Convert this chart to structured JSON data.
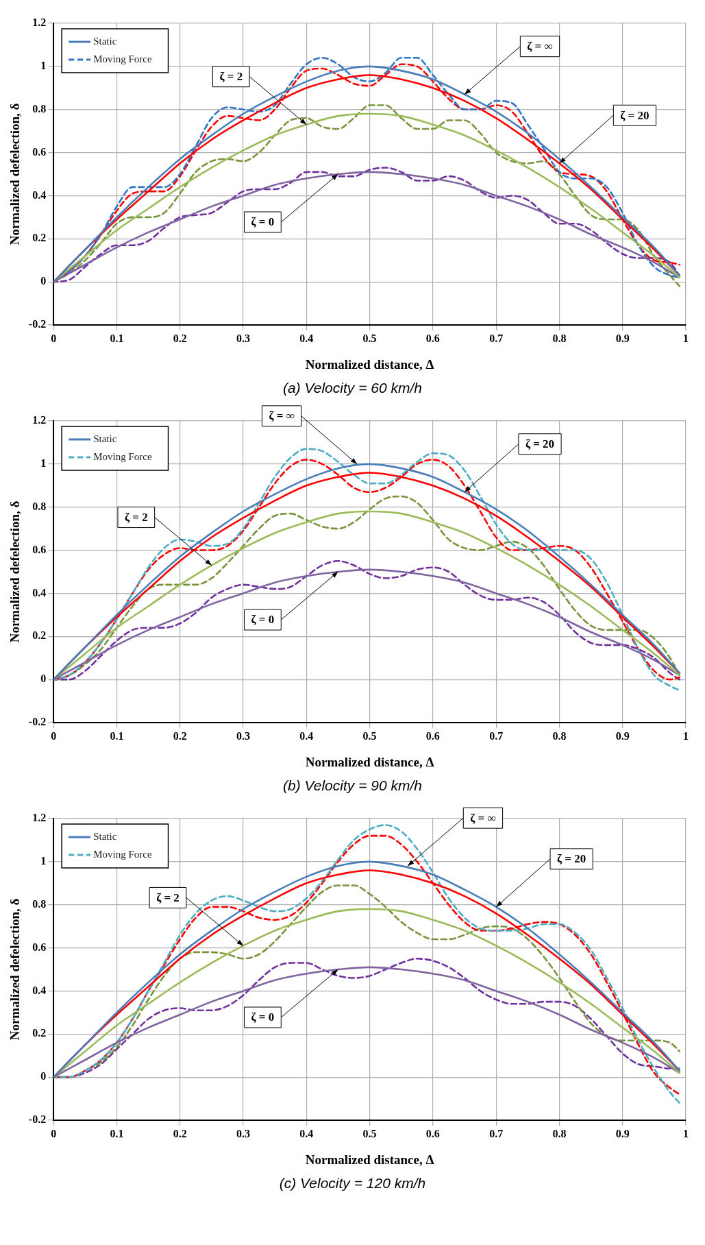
{
  "chart_data": [
    {
      "type": "line",
      "title": "(a) Velocity = 60 km/h",
      "xlabel": "Normalized distance, Δ",
      "ylabel": "Normalized defelection, δ",
      "xlim": [
        0,
        1
      ],
      "ylim": [
        -0.2,
        1.2
      ],
      "xticks": [
        0,
        0.1,
        0.2,
        0.3,
        0.4,
        0.5,
        0.6,
        0.7,
        0.8,
        0.9,
        1
      ],
      "yticks": [
        -0.2,
        0,
        0.2,
        0.4,
        0.6,
        0.8,
        1,
        1.2
      ],
      "grid": true,
      "legend": "top left",
      "marker": "none",
      "annotations": [
        {
          "text": "ζ = ∞",
          "x": 0.65,
          "y": 0.87
        },
        {
          "text": "ζ = 20",
          "x": 0.8,
          "y": 0.55
        },
        {
          "text": "ζ = 2",
          "x": 0.4,
          "y": 0.73
        },
        {
          "text": "ζ = 0",
          "x": 0.45,
          "y": 0.5
        }
      ],
      "series": [
        {
          "name": "Static",
          "color": "#4a7ebb",
          "line_style": "solid",
          "x": [
            0,
            0.05,
            0.1,
            0.15,
            0.2,
            0.25,
            0.3,
            0.35,
            0.4,
            0.45,
            0.5,
            0.55,
            0.6,
            0.65,
            0.7,
            0.75,
            0.8,
            0.85,
            0.9,
            0.95,
            0.99
          ],
          "values": [
            0,
            0.15,
            0.3,
            0.44,
            0.57,
            0.68,
            0.78,
            0.86,
            0.93,
            0.98,
            1.0,
            0.98,
            0.94,
            0.87,
            0.79,
            0.69,
            0.57,
            0.44,
            0.3,
            0.16,
            0.03
          ]
        },
        {
          "color": "#ff0000",
          "line_style": "solid",
          "x": [
            0,
            0.05,
            0.1,
            0.15,
            0.2,
            0.25,
            0.3,
            0.35,
            0.4,
            0.45,
            0.5,
            0.55,
            0.6,
            0.65,
            0.7,
            0.75,
            0.8,
            0.85,
            0.9,
            0.95,
            0.99
          ],
          "values": [
            0,
            0.15,
            0.29,
            0.42,
            0.55,
            0.66,
            0.75,
            0.83,
            0.9,
            0.94,
            0.96,
            0.94,
            0.9,
            0.84,
            0.76,
            0.66,
            0.55,
            0.43,
            0.29,
            0.15,
            0.03
          ]
        },
        {
          "color": "#9bbb59",
          "line_style": "solid",
          "x": [
            0,
            0.05,
            0.1,
            0.15,
            0.2,
            0.25,
            0.3,
            0.35,
            0.4,
            0.45,
            0.5,
            0.55,
            0.6,
            0.65,
            0.7,
            0.75,
            0.8,
            0.85,
            0.9,
            0.95,
            0.99
          ],
          "values": [
            0,
            0.12,
            0.24,
            0.34,
            0.44,
            0.53,
            0.61,
            0.68,
            0.73,
            0.77,
            0.78,
            0.77,
            0.73,
            0.68,
            0.61,
            0.53,
            0.44,
            0.34,
            0.23,
            0.12,
            0.02
          ]
        },
        {
          "color": "#8064a2",
          "line_style": "solid",
          "x": [
            0,
            0.05,
            0.1,
            0.15,
            0.2,
            0.25,
            0.3,
            0.35,
            0.4,
            0.45,
            0.5,
            0.55,
            0.6,
            0.65,
            0.7,
            0.75,
            0.8,
            0.85,
            0.9,
            0.95,
            0.99
          ],
          "values": [
            0,
            0.08,
            0.16,
            0.23,
            0.29,
            0.35,
            0.4,
            0.45,
            0.48,
            0.5,
            0.51,
            0.5,
            0.48,
            0.45,
            0.4,
            0.35,
            0.29,
            0.22,
            0.16,
            0.09,
            0.02
          ]
        },
        {
          "name": "Moving Force",
          "color": "#2e75c8",
          "line_style": "dashed",
          "x": [
            0,
            0.025,
            0.05,
            0.075,
            0.1,
            0.125,
            0.15,
            0.175,
            0.2,
            0.225,
            0.25,
            0.275,
            0.3,
            0.325,
            0.35,
            0.375,
            0.4,
            0.425,
            0.45,
            0.475,
            0.5,
            0.525,
            0.55,
            0.575,
            0.6,
            0.625,
            0.65,
            0.675,
            0.7,
            0.725,
            0.75,
            0.775,
            0.8,
            0.825,
            0.85,
            0.875,
            0.9,
            0.925,
            0.95,
            0.975,
            0.99
          ],
          "values": [
            0,
            0.05,
            0.12,
            0.22,
            0.35,
            0.44,
            0.44,
            0.44,
            0.5,
            0.63,
            0.76,
            0.81,
            0.8,
            0.79,
            0.82,
            0.92,
            1.01,
            1.04,
            1.01,
            0.95,
            0.93,
            0.97,
            1.04,
            1.04,
            0.96,
            0.87,
            0.8,
            0.8,
            0.84,
            0.83,
            0.73,
            0.62,
            0.51,
            0.48,
            0.48,
            0.44,
            0.32,
            0.17,
            0.07,
            0.03,
            0.02
          ]
        },
        {
          "color": "#ff0000",
          "line_style": "dashed",
          "x": [
            0,
            0.025,
            0.05,
            0.075,
            0.1,
            0.125,
            0.15,
            0.175,
            0.2,
            0.225,
            0.25,
            0.275,
            0.3,
            0.325,
            0.35,
            0.375,
            0.4,
            0.425,
            0.45,
            0.475,
            0.5,
            0.525,
            0.55,
            0.575,
            0.6,
            0.625,
            0.65,
            0.675,
            0.7,
            0.725,
            0.75,
            0.775,
            0.8,
            0.825,
            0.85,
            0.875,
            0.9,
            0.925,
            0.95,
            0.975,
            0.99
          ],
          "values": [
            0,
            0.05,
            0.12,
            0.22,
            0.33,
            0.41,
            0.42,
            0.42,
            0.49,
            0.61,
            0.72,
            0.77,
            0.76,
            0.75,
            0.8,
            0.9,
            0.98,
            0.99,
            0.96,
            0.92,
            0.91,
            0.96,
            1.01,
            1.0,
            0.93,
            0.85,
            0.8,
            0.8,
            0.82,
            0.79,
            0.69,
            0.58,
            0.51,
            0.5,
            0.49,
            0.42,
            0.29,
            0.17,
            0.1,
            0.09,
            0.08
          ]
        },
        {
          "color": "#77933c",
          "line_style": "dashed",
          "x": [
            0,
            0.025,
            0.05,
            0.075,
            0.1,
            0.125,
            0.15,
            0.175,
            0.2,
            0.225,
            0.25,
            0.275,
            0.3,
            0.325,
            0.35,
            0.375,
            0.4,
            0.425,
            0.45,
            0.475,
            0.5,
            0.525,
            0.55,
            0.575,
            0.6,
            0.625,
            0.65,
            0.675,
            0.7,
            0.725,
            0.75,
            0.775,
            0.8,
            0.825,
            0.85,
            0.875,
            0.9,
            0.925,
            0.95,
            0.975,
            0.99
          ],
          "values": [
            0,
            0.04,
            0.1,
            0.18,
            0.27,
            0.3,
            0.3,
            0.32,
            0.41,
            0.51,
            0.56,
            0.57,
            0.56,
            0.6,
            0.68,
            0.75,
            0.76,
            0.72,
            0.71,
            0.76,
            0.82,
            0.82,
            0.76,
            0.71,
            0.71,
            0.75,
            0.75,
            0.69,
            0.6,
            0.56,
            0.55,
            0.56,
            0.5,
            0.4,
            0.31,
            0.29,
            0.29,
            0.24,
            0.12,
            0.03,
            -0.02
          ]
        },
        {
          "color": "#7030a0",
          "line_style": "dashed",
          "x": [
            0,
            0.025,
            0.05,
            0.075,
            0.1,
            0.125,
            0.15,
            0.175,
            0.2,
            0.225,
            0.25,
            0.275,
            0.3,
            0.325,
            0.35,
            0.375,
            0.4,
            0.425,
            0.45,
            0.475,
            0.5,
            0.525,
            0.55,
            0.575,
            0.6,
            0.625,
            0.65,
            0.675,
            0.7,
            0.725,
            0.75,
            0.775,
            0.8,
            0.825,
            0.85,
            0.875,
            0.9,
            0.925,
            0.95,
            0.975,
            0.99
          ],
          "values": [
            0,
            0.01,
            0.07,
            0.13,
            0.17,
            0.17,
            0.19,
            0.25,
            0.3,
            0.31,
            0.32,
            0.37,
            0.42,
            0.43,
            0.43,
            0.46,
            0.51,
            0.51,
            0.49,
            0.49,
            0.52,
            0.53,
            0.51,
            0.47,
            0.47,
            0.49,
            0.47,
            0.42,
            0.39,
            0.4,
            0.38,
            0.32,
            0.27,
            0.27,
            0.24,
            0.18,
            0.13,
            0.11,
            0.11,
            0.09,
            0.03
          ]
        }
      ]
    },
    {
      "type": "line",
      "title": "(b) Velocity = 90 km/h",
      "xlabel": "Normalized distance, Δ",
      "ylabel": "Normalized defelection, δ",
      "xlim": [
        0,
        1
      ],
      "ylim": [
        -0.2,
        1.2
      ],
      "xticks": [
        0,
        0.1,
        0.2,
        0.3,
        0.4,
        0.5,
        0.6,
        0.7,
        0.8,
        0.9,
        1
      ],
      "yticks": [
        -0.2,
        0,
        0.2,
        0.4,
        0.6,
        0.8,
        1,
        1.2
      ],
      "grid": true,
      "legend": "top left",
      "marker": "none",
      "annotations": [
        {
          "text": "ζ = ∞",
          "x": 0.48,
          "y": 1.0
        },
        {
          "text": "ζ = 20",
          "x": 0.65,
          "y": 0.87
        },
        {
          "text": "ζ = 2",
          "x": 0.25,
          "y": 0.53
        },
        {
          "text": "ζ = 0",
          "x": 0.45,
          "y": 0.5
        }
      ],
      "series": [
        {
          "name": "Static",
          "color": "#4a7ebb",
          "line_style": "solid",
          "x": [
            0,
            0.05,
            0.1,
            0.15,
            0.2,
            0.25,
            0.3,
            0.35,
            0.4,
            0.45,
            0.5,
            0.55,
            0.6,
            0.65,
            0.7,
            0.75,
            0.8,
            0.85,
            0.9,
            0.95,
            0.99
          ],
          "values": [
            0,
            0.15,
            0.3,
            0.44,
            0.57,
            0.68,
            0.78,
            0.86,
            0.93,
            0.98,
            1.0,
            0.98,
            0.94,
            0.87,
            0.79,
            0.69,
            0.57,
            0.44,
            0.3,
            0.16,
            0.03
          ]
        },
        {
          "color": "#ff0000",
          "line_style": "solid",
          "x": [
            0,
            0.05,
            0.1,
            0.15,
            0.2,
            0.25,
            0.3,
            0.35,
            0.4,
            0.45,
            0.5,
            0.55,
            0.6,
            0.65,
            0.7,
            0.75,
            0.8,
            0.85,
            0.9,
            0.95,
            0.99
          ],
          "values": [
            0,
            0.15,
            0.29,
            0.42,
            0.55,
            0.66,
            0.75,
            0.83,
            0.9,
            0.94,
            0.96,
            0.94,
            0.9,
            0.84,
            0.76,
            0.66,
            0.55,
            0.43,
            0.29,
            0.15,
            0.03
          ]
        },
        {
          "color": "#9bbb59",
          "line_style": "solid",
          "x": [
            0,
            0.05,
            0.1,
            0.15,
            0.2,
            0.25,
            0.3,
            0.35,
            0.4,
            0.45,
            0.5,
            0.55,
            0.6,
            0.65,
            0.7,
            0.75,
            0.8,
            0.85,
            0.9,
            0.95,
            0.99
          ],
          "values": [
            0,
            0.12,
            0.24,
            0.34,
            0.44,
            0.53,
            0.61,
            0.68,
            0.73,
            0.77,
            0.78,
            0.77,
            0.73,
            0.68,
            0.61,
            0.53,
            0.44,
            0.34,
            0.23,
            0.12,
            0.02
          ]
        },
        {
          "color": "#8064a2",
          "line_style": "solid",
          "x": [
            0,
            0.05,
            0.1,
            0.15,
            0.2,
            0.25,
            0.3,
            0.35,
            0.4,
            0.45,
            0.5,
            0.55,
            0.6,
            0.65,
            0.7,
            0.75,
            0.8,
            0.85,
            0.9,
            0.95,
            0.99
          ],
          "values": [
            0,
            0.08,
            0.16,
            0.23,
            0.29,
            0.35,
            0.4,
            0.45,
            0.48,
            0.5,
            0.51,
            0.5,
            0.48,
            0.45,
            0.4,
            0.35,
            0.29,
            0.22,
            0.16,
            0.09,
            0.02
          ]
        },
        {
          "name": "Moving Force",
          "color": "#4bacc6",
          "line_style": "dashed",
          "x": [
            0,
            0.025,
            0.05,
            0.075,
            0.1,
            0.125,
            0.15,
            0.175,
            0.2,
            0.225,
            0.25,
            0.275,
            0.3,
            0.325,
            0.35,
            0.375,
            0.4,
            0.425,
            0.45,
            0.475,
            0.5,
            0.525,
            0.55,
            0.575,
            0.6,
            0.625,
            0.65,
            0.675,
            0.7,
            0.725,
            0.75,
            0.775,
            0.8,
            0.825,
            0.85,
            0.875,
            0.9,
            0.925,
            0.95,
            0.975,
            0.99
          ],
          "values": [
            0,
            0.02,
            0.08,
            0.17,
            0.28,
            0.4,
            0.52,
            0.61,
            0.65,
            0.64,
            0.62,
            0.63,
            0.7,
            0.82,
            0.94,
            1.03,
            1.07,
            1.06,
            1.01,
            0.95,
            0.91,
            0.91,
            0.95,
            1.01,
            1.05,
            1.04,
            0.97,
            0.85,
            0.72,
            0.63,
            0.6,
            0.6,
            0.6,
            0.6,
            0.56,
            0.45,
            0.3,
            0.14,
            0.02,
            -0.03,
            -0.05
          ]
        },
        {
          "color": "#ff0000",
          "line_style": "dashed",
          "x": [
            0,
            0.025,
            0.05,
            0.075,
            0.1,
            0.125,
            0.15,
            0.175,
            0.2,
            0.225,
            0.25,
            0.275,
            0.3,
            0.325,
            0.35,
            0.375,
            0.4,
            0.425,
            0.45,
            0.475,
            0.5,
            0.525,
            0.55,
            0.575,
            0.6,
            0.625,
            0.65,
            0.675,
            0.7,
            0.725,
            0.75,
            0.775,
            0.8,
            0.825,
            0.85,
            0.875,
            0.9,
            0.925,
            0.95,
            0.975,
            0.99
          ],
          "values": [
            0,
            0.02,
            0.08,
            0.17,
            0.28,
            0.4,
            0.51,
            0.58,
            0.61,
            0.6,
            0.6,
            0.62,
            0.69,
            0.8,
            0.91,
            0.99,
            1.02,
            1.0,
            0.95,
            0.89,
            0.87,
            0.89,
            0.94,
            1.0,
            1.02,
            0.99,
            0.9,
            0.78,
            0.66,
            0.6,
            0.6,
            0.61,
            0.62,
            0.6,
            0.52,
            0.4,
            0.27,
            0.14,
            0.04,
            0.0,
            0.01
          ]
        },
        {
          "color": "#77933c",
          "line_style": "dashed",
          "x": [
            0,
            0.025,
            0.05,
            0.075,
            0.1,
            0.125,
            0.15,
            0.175,
            0.2,
            0.225,
            0.25,
            0.275,
            0.3,
            0.325,
            0.35,
            0.375,
            0.4,
            0.425,
            0.45,
            0.475,
            0.5,
            0.525,
            0.55,
            0.575,
            0.6,
            0.625,
            0.65,
            0.675,
            0.7,
            0.725,
            0.75,
            0.775,
            0.8,
            0.825,
            0.85,
            0.875,
            0.9,
            0.925,
            0.95,
            0.975,
            0.99
          ],
          "values": [
            0,
            0.02,
            0.07,
            0.14,
            0.24,
            0.34,
            0.42,
            0.44,
            0.44,
            0.44,
            0.47,
            0.54,
            0.62,
            0.7,
            0.76,
            0.77,
            0.74,
            0.71,
            0.7,
            0.73,
            0.79,
            0.84,
            0.85,
            0.82,
            0.74,
            0.65,
            0.61,
            0.6,
            0.62,
            0.64,
            0.61,
            0.53,
            0.42,
            0.32,
            0.25,
            0.23,
            0.23,
            0.23,
            0.19,
            0.1,
            0.02
          ]
        },
        {
          "color": "#7030a0",
          "line_style": "dashed",
          "x": [
            0,
            0.025,
            0.05,
            0.075,
            0.1,
            0.125,
            0.15,
            0.175,
            0.2,
            0.225,
            0.25,
            0.275,
            0.3,
            0.325,
            0.35,
            0.375,
            0.4,
            0.425,
            0.45,
            0.475,
            0.5,
            0.525,
            0.55,
            0.575,
            0.6,
            0.625,
            0.65,
            0.675,
            0.7,
            0.725,
            0.75,
            0.775,
            0.8,
            0.825,
            0.85,
            0.875,
            0.9,
            0.925,
            0.95,
            0.975,
            0.99
          ],
          "values": [
            0,
            0.0,
            0.04,
            0.11,
            0.18,
            0.23,
            0.24,
            0.24,
            0.26,
            0.31,
            0.38,
            0.42,
            0.44,
            0.43,
            0.42,
            0.43,
            0.48,
            0.53,
            0.55,
            0.53,
            0.49,
            0.47,
            0.48,
            0.51,
            0.52,
            0.5,
            0.44,
            0.39,
            0.37,
            0.37,
            0.38,
            0.36,
            0.3,
            0.22,
            0.17,
            0.16,
            0.16,
            0.14,
            0.1,
            0.03,
            0.0
          ]
        }
      ]
    },
    {
      "type": "line",
      "title": "(c) Velocity = 120 km/h",
      "xlabel": "Normalized distance, Δ",
      "ylabel": "Normalized defelection, δ",
      "xlim": [
        0,
        1
      ],
      "ylim": [
        -0.2,
        1.2
      ],
      "xticks": [
        0,
        0.1,
        0.2,
        0.3,
        0.4,
        0.5,
        0.6,
        0.7,
        0.8,
        0.9,
        1
      ],
      "yticks": [
        -0.2,
        0,
        0.2,
        0.4,
        0.6,
        0.8,
        1,
        1.2
      ],
      "grid": true,
      "legend": "top left",
      "marker": "none",
      "annotations": [
        {
          "text": "ζ = ∞",
          "x": 0.56,
          "y": 0.98
        },
        {
          "text": "ζ = 20",
          "x": 0.7,
          "y": 0.79
        },
        {
          "text": "ζ = 2",
          "x": 0.3,
          "y": 0.61
        },
        {
          "text": "ζ = 0",
          "x": 0.45,
          "y": 0.5
        }
      ],
      "series": [
        {
          "name": "Static",
          "color": "#4a7ebb",
          "line_style": "solid",
          "x": [
            0,
            0.05,
            0.1,
            0.15,
            0.2,
            0.25,
            0.3,
            0.35,
            0.4,
            0.45,
            0.5,
            0.55,
            0.6,
            0.65,
            0.7,
            0.75,
            0.8,
            0.85,
            0.9,
            0.95,
            0.99
          ],
          "values": [
            0,
            0.15,
            0.3,
            0.44,
            0.57,
            0.68,
            0.78,
            0.86,
            0.93,
            0.98,
            1.0,
            0.98,
            0.94,
            0.87,
            0.79,
            0.69,
            0.57,
            0.44,
            0.3,
            0.16,
            0.03
          ]
        },
        {
          "color": "#ff0000",
          "line_style": "solid",
          "x": [
            0,
            0.05,
            0.1,
            0.15,
            0.2,
            0.25,
            0.3,
            0.35,
            0.4,
            0.45,
            0.5,
            0.55,
            0.6,
            0.65,
            0.7,
            0.75,
            0.8,
            0.85,
            0.9,
            0.95,
            0.99
          ],
          "values": [
            0,
            0.15,
            0.29,
            0.42,
            0.55,
            0.66,
            0.75,
            0.83,
            0.9,
            0.94,
            0.96,
            0.94,
            0.9,
            0.84,
            0.76,
            0.66,
            0.55,
            0.43,
            0.29,
            0.15,
            0.03
          ]
        },
        {
          "color": "#9bbb59",
          "line_style": "solid",
          "x": [
            0,
            0.05,
            0.1,
            0.15,
            0.2,
            0.25,
            0.3,
            0.35,
            0.4,
            0.45,
            0.5,
            0.55,
            0.6,
            0.65,
            0.7,
            0.75,
            0.8,
            0.85,
            0.9,
            0.95,
            0.99
          ],
          "values": [
            0,
            0.12,
            0.24,
            0.34,
            0.44,
            0.53,
            0.61,
            0.68,
            0.73,
            0.77,
            0.78,
            0.77,
            0.73,
            0.68,
            0.61,
            0.53,
            0.44,
            0.34,
            0.23,
            0.12,
            0.02
          ]
        },
        {
          "color": "#8064a2",
          "line_style": "solid",
          "x": [
            0,
            0.05,
            0.1,
            0.15,
            0.2,
            0.25,
            0.3,
            0.35,
            0.4,
            0.45,
            0.5,
            0.55,
            0.6,
            0.65,
            0.7,
            0.75,
            0.8,
            0.85,
            0.9,
            0.95,
            0.99
          ],
          "values": [
            0,
            0.08,
            0.16,
            0.23,
            0.29,
            0.35,
            0.4,
            0.45,
            0.48,
            0.5,
            0.51,
            0.5,
            0.48,
            0.45,
            0.4,
            0.35,
            0.29,
            0.22,
            0.16,
            0.09,
            0.02
          ]
        },
        {
          "name": "Moving Force",
          "color": "#4bacc6",
          "line_style": "dashed",
          "x": [
            0,
            0.025,
            0.05,
            0.075,
            0.1,
            0.125,
            0.15,
            0.175,
            0.2,
            0.225,
            0.25,
            0.275,
            0.3,
            0.325,
            0.35,
            0.375,
            0.4,
            0.425,
            0.45,
            0.475,
            0.5,
            0.525,
            0.55,
            0.575,
            0.6,
            0.625,
            0.65,
            0.675,
            0.7,
            0.725,
            0.75,
            0.775,
            0.8,
            0.825,
            0.85,
            0.875,
            0.9,
            0.925,
            0.95,
            0.975,
            0.99
          ],
          "values": [
            0,
            0.0,
            0.03,
            0.08,
            0.16,
            0.27,
            0.4,
            0.53,
            0.66,
            0.76,
            0.82,
            0.84,
            0.82,
            0.79,
            0.77,
            0.78,
            0.83,
            0.91,
            1.01,
            1.1,
            1.15,
            1.17,
            1.14,
            1.06,
            0.95,
            0.83,
            0.74,
            0.69,
            0.68,
            0.68,
            0.69,
            0.71,
            0.71,
            0.67,
            0.59,
            0.46,
            0.32,
            0.17,
            0.04,
            -0.07,
            -0.12
          ]
        },
        {
          "color": "#ff0000",
          "line_style": "dashed",
          "x": [
            0,
            0.025,
            0.05,
            0.075,
            0.1,
            0.125,
            0.15,
            0.175,
            0.2,
            0.225,
            0.25,
            0.275,
            0.3,
            0.325,
            0.35,
            0.375,
            0.4,
            0.425,
            0.45,
            0.475,
            0.5,
            0.525,
            0.55,
            0.575,
            0.6,
            0.625,
            0.65,
            0.675,
            0.7,
            0.725,
            0.75,
            0.775,
            0.8,
            0.825,
            0.85,
            0.875,
            0.9,
            0.925,
            0.95,
            0.975,
            0.99
          ],
          "values": [
            0,
            0.0,
            0.03,
            0.08,
            0.16,
            0.27,
            0.4,
            0.52,
            0.64,
            0.74,
            0.79,
            0.79,
            0.77,
            0.74,
            0.73,
            0.75,
            0.81,
            0.9,
            1.0,
            1.08,
            1.12,
            1.12,
            1.08,
            1.0,
            0.9,
            0.8,
            0.72,
            0.68,
            0.68,
            0.69,
            0.71,
            0.72,
            0.71,
            0.66,
            0.57,
            0.44,
            0.3,
            0.15,
            0.02,
            -0.05,
            -0.08
          ]
        },
        {
          "color": "#77933c",
          "line_style": "dashed",
          "x": [
            0,
            0.025,
            0.05,
            0.075,
            0.1,
            0.125,
            0.15,
            0.175,
            0.2,
            0.225,
            0.25,
            0.275,
            0.3,
            0.325,
            0.35,
            0.375,
            0.4,
            0.425,
            0.45,
            0.475,
            0.5,
            0.525,
            0.55,
            0.575,
            0.6,
            0.625,
            0.65,
            0.675,
            0.7,
            0.725,
            0.75,
            0.775,
            0.8,
            0.825,
            0.85,
            0.875,
            0.9,
            0.925,
            0.95,
            0.975,
            0.99
          ],
          "values": [
            0,
            0.0,
            0.03,
            0.07,
            0.14,
            0.24,
            0.36,
            0.47,
            0.55,
            0.58,
            0.58,
            0.57,
            0.55,
            0.57,
            0.63,
            0.71,
            0.79,
            0.86,
            0.89,
            0.89,
            0.85,
            0.79,
            0.72,
            0.67,
            0.64,
            0.64,
            0.66,
            0.69,
            0.7,
            0.69,
            0.64,
            0.56,
            0.46,
            0.35,
            0.25,
            0.19,
            0.17,
            0.17,
            0.17,
            0.16,
            0.12
          ]
        },
        {
          "color": "#7030a0",
          "line_style": "dashed",
          "x": [
            0,
            0.025,
            0.05,
            0.075,
            0.1,
            0.125,
            0.15,
            0.175,
            0.2,
            0.225,
            0.25,
            0.275,
            0.3,
            0.325,
            0.35,
            0.375,
            0.4,
            0.425,
            0.45,
            0.475,
            0.5,
            0.525,
            0.55,
            0.575,
            0.6,
            0.625,
            0.65,
            0.675,
            0.7,
            0.725,
            0.75,
            0.775,
            0.8,
            0.825,
            0.85,
            0.875,
            0.9,
            0.925,
            0.95,
            0.975,
            0.99
          ],
          "values": [
            0,
            0.0,
            0.02,
            0.06,
            0.13,
            0.2,
            0.27,
            0.31,
            0.32,
            0.31,
            0.31,
            0.33,
            0.38,
            0.45,
            0.51,
            0.53,
            0.53,
            0.5,
            0.47,
            0.46,
            0.47,
            0.5,
            0.53,
            0.55,
            0.54,
            0.51,
            0.46,
            0.4,
            0.36,
            0.34,
            0.34,
            0.35,
            0.35,
            0.33,
            0.27,
            0.19,
            0.11,
            0.06,
            0.05,
            0.04,
            0.04
          ]
        }
      ]
    }
  ]
}
